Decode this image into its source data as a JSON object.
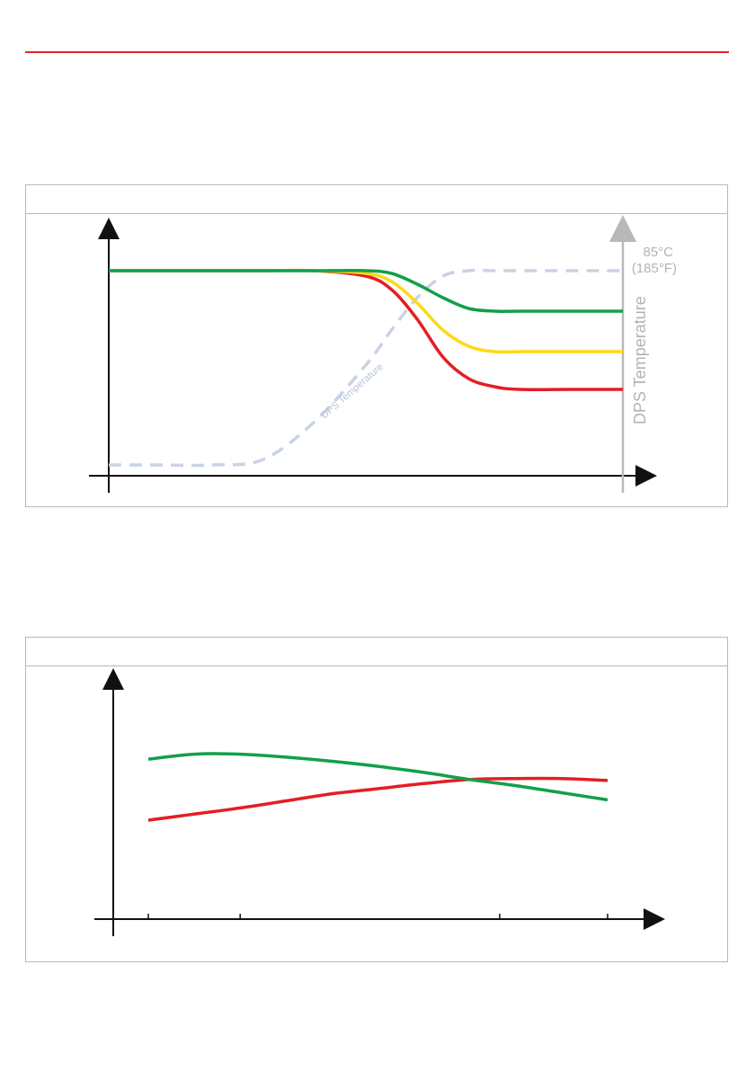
{
  "colors": {
    "rule": "#e3242b",
    "green": "#12a04a",
    "yellow": "#ffd816",
    "red": "#e31e24",
    "dps_dashed": "#c9d3e6",
    "right_axis": "#b8b8b8",
    "axis": "#111111"
  },
  "chart_data": [
    {
      "type": "line",
      "x": [
        0,
        10,
        20,
        30,
        40,
        50,
        55,
        60,
        65,
        70,
        75,
        80,
        90,
        100
      ],
      "series": [
        {
          "color": "green",
          "values": [
            100,
            100,
            100,
            100,
            100,
            100,
            99,
            95,
            90,
            86,
            85,
            85,
            85,
            85
          ]
        },
        {
          "color": "yellow",
          "values": [
            100,
            100,
            100,
            100,
            100,
            99,
            96,
            88,
            78,
            72,
            70,
            70,
            70,
            70
          ]
        },
        {
          "color": "red",
          "values": [
            100,
            100,
            100,
            100,
            100,
            98,
            93,
            82,
            68,
            60,
            57,
            56,
            56,
            56
          ]
        },
        {
          "name": "DPS Temperature",
          "style": "dashed",
          "color": "dps_dashed",
          "values": [
            28,
            28,
            28,
            30,
            44,
            65,
            78,
            90,
            98,
            100,
            100,
            100,
            100,
            100
          ]
        }
      ],
      "right_axis": {
        "label": "DPS Temperature",
        "max_label_c": "85°C",
        "max_label_f": "(185°F)"
      },
      "annotations": [
        "DPS Temperature"
      ]
    },
    {
      "type": "line",
      "x": [
        0,
        10,
        20,
        30,
        40,
        50,
        60,
        70,
        80,
        90,
        100
      ],
      "x_ticks": [
        0,
        20,
        76.5,
        100
      ],
      "series": [
        {
          "color": "green",
          "values": [
            70,
            75,
            75,
            72,
            68,
            63,
            57,
            50,
            44,
            37,
            30
          ]
        },
        {
          "color": "red",
          "values": [
            10,
            16,
            22,
            29,
            36,
            41,
            46,
            50,
            51,
            51,
            49
          ]
        }
      ]
    }
  ]
}
